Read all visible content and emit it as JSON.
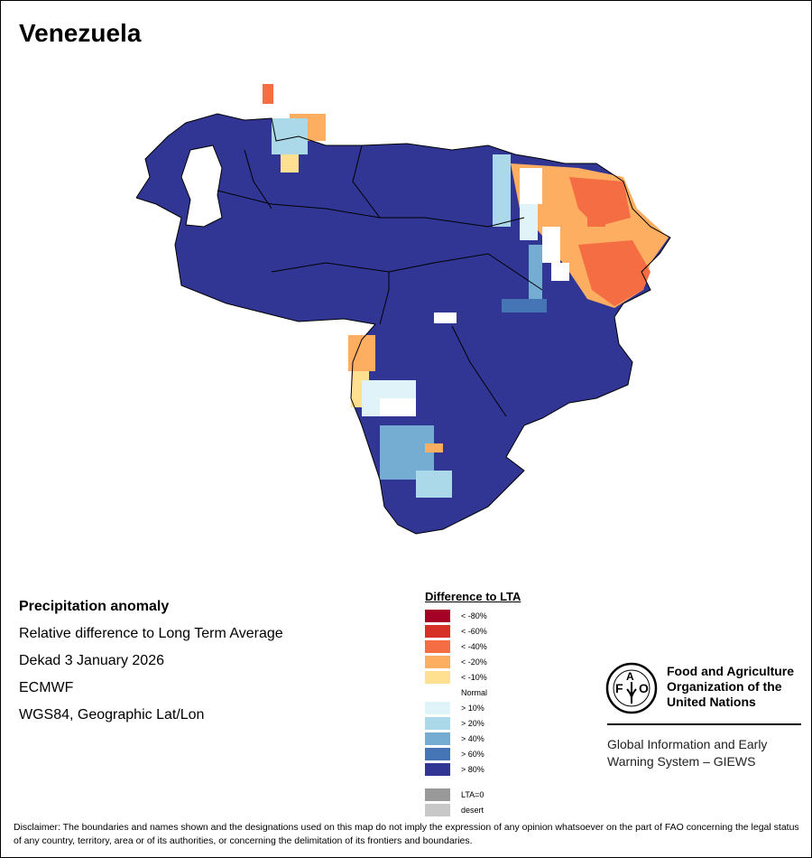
{
  "title": "Venezuela",
  "info": {
    "heading": "Precipitation anomaly",
    "subtitle": "Relative difference to Long Term Average",
    "period": "Dekad 3 January 2026",
    "source": "ECMWF",
    "projection": "WGS84, Geographic Lat/Lon"
  },
  "legend": {
    "title": "Difference to LTA",
    "items": [
      {
        "label": "< -80%",
        "color": "#a50026"
      },
      {
        "label": "< -60%",
        "color": "#d73027"
      },
      {
        "label": "< -40%",
        "color": "#f46d43"
      },
      {
        "label": "< -20%",
        "color": "#fdae61"
      },
      {
        "label": "< -10%",
        "color": "#fee090"
      },
      {
        "label": "Normal",
        "color": "#ffffff"
      },
      {
        "label": "> 10%",
        "color": "#e0f3f8"
      },
      {
        "label": "> 20%",
        "color": "#abd9e9"
      },
      {
        "label": "> 40%",
        "color": "#74add1"
      },
      {
        "label": "> 60%",
        "color": "#4575b4"
      },
      {
        "label": "> 80%",
        "color": "#313695"
      }
    ],
    "extra": [
      {
        "label": "LTA=0",
        "color": "#999999"
      },
      {
        "label": "desert",
        "color": "#c8c8c8"
      }
    ]
  },
  "org": {
    "logo_text": "FAO FIAT PANIS",
    "name_lines": [
      "Food and Agriculture",
      "Organization of the",
      "United Nations"
    ],
    "system_lines": [
      "Global Information and Early",
      "Warning System – GIEWS"
    ]
  },
  "disclaimer": "Disclaimer: The boundaries and names shown and the designations used on this map do not imply the expression of any opinion whatsoever on the part of FAO concerning the legal status of any country, territory, area or of its authorities, or concerning the delimitation of its frontiers and boundaries."
}
